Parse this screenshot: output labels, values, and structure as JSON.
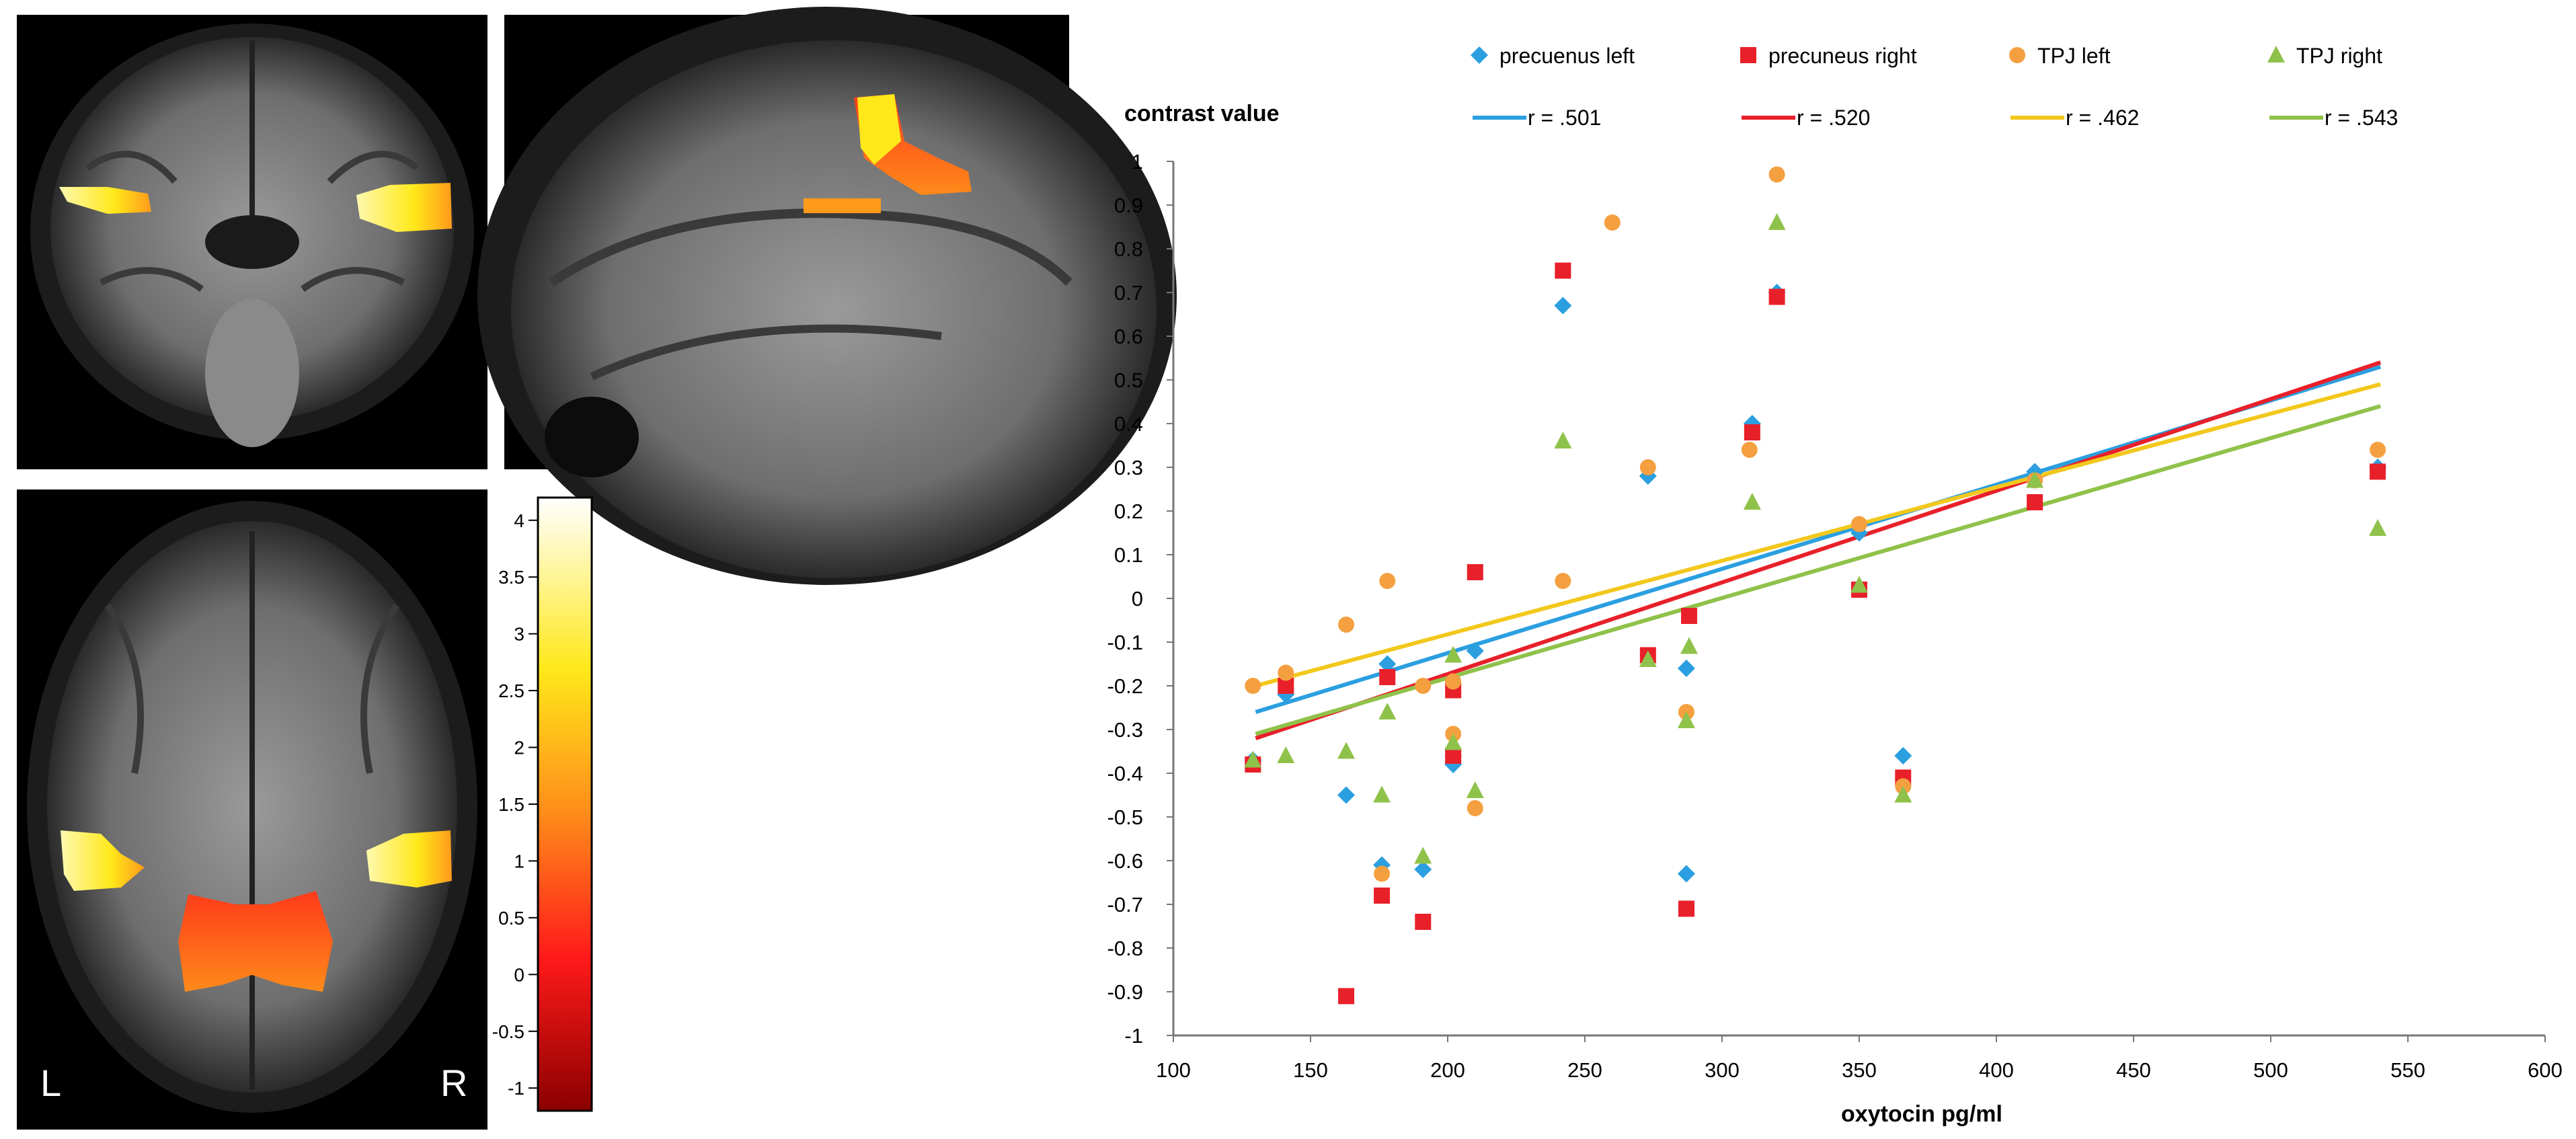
{
  "brain_panels": {
    "colorbar": {
      "ticks": [
        "4",
        "3.5",
        "3",
        "2.5",
        "2",
        "1.5",
        "1",
        "0.5",
        "0",
        "-0.5",
        "-1"
      ],
      "range": [
        -1.2,
        4.2
      ]
    },
    "orientation_left": "L",
    "orientation_right": "R",
    "colors": {
      "low": "#8b0000",
      "mid": "#ff2a1a",
      "high": "#ffe81a",
      "top": "#ffffff",
      "background": "#000000"
    }
  },
  "chart_data": {
    "type": "scatter",
    "ylabel": "contrast value",
    "xlabel": "oxytocin pg/ml",
    "xlim": [
      100,
      600
    ],
    "ylim": [
      -1,
      1
    ],
    "x_ticks": [
      100,
      150,
      200,
      250,
      300,
      350,
      400,
      450,
      500,
      550,
      600
    ],
    "y_ticks": [
      "1",
      "0.9",
      "0.8",
      "0.7",
      "0.6",
      "0.5",
      "0.4",
      "0.3",
      "0.2",
      "0.1",
      "0",
      "-0.1",
      "-0.2",
      "-0.3",
      "-0.4",
      "-0.5",
      "-0.6",
      "-0.7",
      "-0.8",
      "-0.9",
      "-1"
    ],
    "y_tick_values": [
      1,
      0.9,
      0.8,
      0.7,
      0.6,
      0.5,
      0.4,
      0.3,
      0.2,
      0.1,
      0,
      -0.1,
      -0.2,
      -0.3,
      -0.4,
      -0.5,
      -0.6,
      -0.7,
      -0.8,
      -0.9,
      -1
    ],
    "grid": false,
    "legend_position": "top",
    "series": [
      {
        "name": "precuenus left",
        "marker": "diamond",
        "color": "#2b9fe0",
        "x": [
          129,
          141,
          163,
          176,
          178,
          191,
          202,
          202,
          210,
          242,
          273,
          287,
          287,
          311,
          320,
          350,
          366,
          414,
          539
        ],
        "y": [
          -0.37,
          -0.22,
          -0.45,
          -0.61,
          -0.15,
          -0.62,
          -0.38,
          -0.36,
          -0.12,
          0.67,
          0.28,
          -0.16,
          -0.63,
          0.4,
          0.7,
          0.15,
          -0.36,
          0.29,
          0.3
        ]
      },
      {
        "name": "precuneus right",
        "marker": "square",
        "color": "#e8202a",
        "x": [
          129,
          141,
          163,
          176,
          178,
          191,
          202,
          202,
          210,
          242,
          273,
          287,
          288,
          311,
          320,
          350,
          366,
          414,
          539
        ],
        "y": [
          -0.38,
          -0.2,
          -0.91,
          -0.68,
          -0.18,
          -0.74,
          -0.21,
          -0.36,
          0.06,
          0.75,
          -0.13,
          -0.71,
          -0.04,
          0.38,
          0.69,
          0.02,
          -0.41,
          0.22,
          0.29
        ]
      },
      {
        "name": "TPJ left",
        "marker": "circle",
        "color": "#f4a040",
        "x": [
          129,
          141,
          163,
          176,
          178,
          191,
          202,
          202,
          210,
          242,
          260,
          273,
          287,
          310,
          320,
          350,
          366,
          414,
          539
        ],
        "y": [
          -0.2,
          -0.17,
          -0.06,
          -0.63,
          0.04,
          -0.2,
          -0.19,
          -0.31,
          -0.48,
          0.04,
          0.86,
          0.3,
          -0.26,
          0.34,
          0.97,
          0.17,
          -0.43,
          0.27,
          0.34
        ]
      },
      {
        "name": "TPJ right",
        "marker": "triangle",
        "color": "#8fc24a",
        "x": [
          129,
          141,
          163,
          176,
          178,
          191,
          202,
          202,
          210,
          242,
          273,
          287,
          288,
          311,
          320,
          350,
          366,
          414,
          539
        ],
        "y": [
          -0.37,
          -0.36,
          -0.35,
          -0.45,
          -0.26,
          -0.59,
          -0.13,
          -0.33,
          -0.44,
          0.36,
          -0.14,
          -0.28,
          -0.11,
          0.22,
          0.86,
          0.03,
          -0.45,
          0.27,
          0.16
        ]
      }
    ],
    "trendlines": [
      {
        "label": "r = .501",
        "color": "#2b9fe0",
        "x": [
          130,
          540
        ],
        "y": [
          -0.26,
          0.53
        ]
      },
      {
        "label": "r = .520",
        "color": "#e8202a",
        "x": [
          130,
          540
        ],
        "y": [
          -0.32,
          0.54
        ]
      },
      {
        "label": "r = .462",
        "color": "#f2c81d",
        "x": [
          130,
          540
        ],
        "y": [
          -0.2,
          0.49
        ]
      },
      {
        "label": "r = .543",
        "color": "#8fc24a",
        "x": [
          130,
          540
        ],
        "y": [
          -0.31,
          0.44
        ]
      }
    ]
  }
}
